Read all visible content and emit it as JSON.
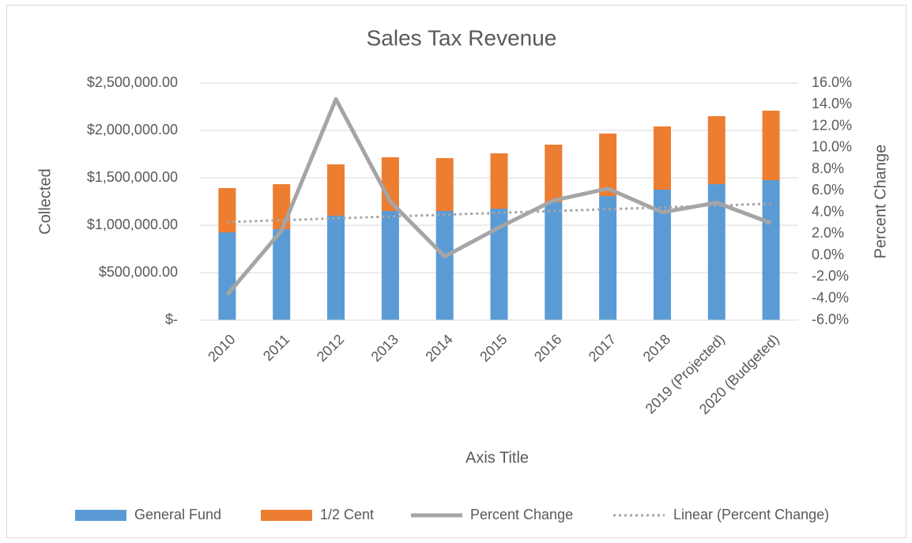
{
  "chart_data": {
    "type": "bar_line",
    "title": "Sales Tax Revenue",
    "x_label": "Axis Title",
    "y_label": "Collected",
    "y2_label": "Percent Change",
    "categories": [
      "2010",
      "2011",
      "2012",
      "2013",
      "2014",
      "2015",
      "2016",
      "2017",
      "2018",
      "2019 (Projected)",
      "2020 (Budgeted)"
    ],
    "series": [
      {
        "name": "General Fund",
        "kind": "bar",
        "color": "#5b9bd5",
        "values": [
          925000,
          958000,
          1100000,
          1150000,
          1150000,
          1175000,
          1242000,
          1308000,
          1375000,
          1433000,
          1475000
        ]
      },
      {
        "name": "1/2 Cent",
        "kind": "bar",
        "color": "#ed7d31",
        "values": [
          467000,
          475000,
          542000,
          567000,
          558000,
          583000,
          608000,
          659000,
          667000,
          717000,
          733000
        ]
      },
      {
        "name": "Percent Change",
        "kind": "line",
        "axis": "y2",
        "color": "#a5a5a5",
        "dashed": false,
        "values": [
          -3.65,
          2.3,
          14.5,
          5.0,
          -0.1,
          2.6,
          5.1,
          6.2,
          4.0,
          4.9,
          3.0
        ]
      },
      {
        "name": "Linear (Percent Change)",
        "kind": "line",
        "axis": "y2",
        "color": "#a5a5a5",
        "dashed": true,
        "values": [
          3.1,
          3.27,
          3.44,
          3.61,
          3.78,
          3.95,
          4.12,
          4.29,
          4.46,
          4.63,
          4.8
        ]
      }
    ],
    "ylim": [
      0,
      2500000
    ],
    "yticks": [
      {
        "value": 0,
        "label": "$-"
      },
      {
        "value": 500000,
        "label": "$500,000.00"
      },
      {
        "value": 1000000,
        "label": "$1,000,000.00"
      },
      {
        "value": 1500000,
        "label": "$1,500,000.00"
      },
      {
        "value": 2000000,
        "label": "$2,000,000.00"
      },
      {
        "value": 2500000,
        "label": "$2,500,000.00"
      }
    ],
    "y2lim": [
      -6,
      16
    ],
    "y2ticks": [
      {
        "value": -6,
        "label": "-6.0%"
      },
      {
        "value": -4,
        "label": "-4.0%"
      },
      {
        "value": -2,
        "label": "-2.0%"
      },
      {
        "value": 0,
        "label": "0.0%"
      },
      {
        "value": 2,
        "label": "2.0%"
      },
      {
        "value": 4,
        "label": "4.0%"
      },
      {
        "value": 6,
        "label": "6.0%"
      },
      {
        "value": 8,
        "label": "8.0%"
      },
      {
        "value": 10,
        "label": "10.0%"
      },
      {
        "value": 12,
        "label": "12.0%"
      },
      {
        "value": 14,
        "label": "14.0%"
      },
      {
        "value": 16,
        "label": "16.0%"
      }
    ],
    "grid": true,
    "legend": "bottom"
  }
}
